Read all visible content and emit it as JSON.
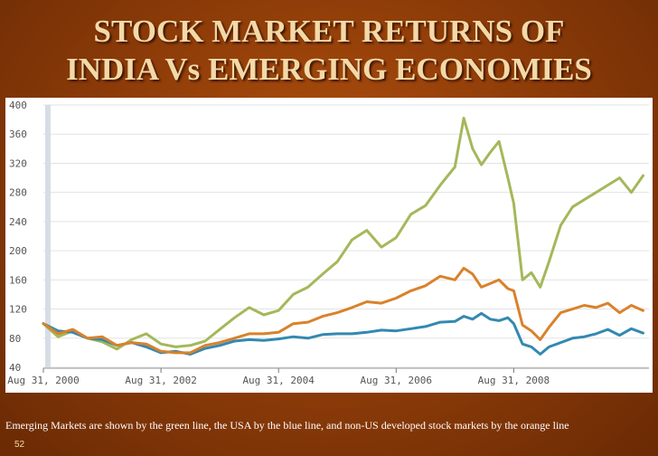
{
  "slide": {
    "title_line1": "STOCK MARKET RETURNS OF",
    "title_line2": "INDIA Vs EMERGING ECONOMIES",
    "caption": "Emerging Markets are shown by the green line, the USA by the blue line, and non-US developed stock markets by the orange line",
    "page_number": "52"
  },
  "chart_data": {
    "type": "line",
    "title": "",
    "xlabel": "",
    "ylabel": "",
    "ylim": [
      40,
      400
    ],
    "xlim": [
      2000.0,
      2010.3
    ],
    "yticks": [
      "400",
      "360",
      "320",
      "280",
      "240",
      "200",
      "160",
      "120",
      "80",
      "40"
    ],
    "xticks": [
      {
        "label": "Aug 31, 2000",
        "x": 2000.0
      },
      {
        "label": "Aug 31, 2002",
        "x": 2002.0
      },
      {
        "label": "Aug 31, 2004",
        "x": 2004.0
      },
      {
        "label": "Aug 31, 2006",
        "x": 2006.0
      },
      {
        "label": "Aug 31, 2008",
        "x": 2008.0
      }
    ],
    "grid": true,
    "legend": "none",
    "series": [
      {
        "name": "Emerging Markets",
        "color": "#a4b85a",
        "x": [
          2000.0,
          2000.25,
          2000.5,
          2000.75,
          2001.0,
          2001.25,
          2001.5,
          2001.75,
          2002.0,
          2002.25,
          2002.5,
          2002.75,
          2003.0,
          2003.25,
          2003.5,
          2003.75,
          2004.0,
          2004.25,
          2004.5,
          2004.75,
          2005.0,
          2005.25,
          2005.5,
          2005.75,
          2006.0,
          2006.25,
          2006.5,
          2006.75,
          2007.0,
          2007.15,
          2007.3,
          2007.45,
          2007.6,
          2007.75,
          2007.9,
          2008.0,
          2008.15,
          2008.3,
          2008.45,
          2008.6,
          2008.8,
          2009.0,
          2009.2,
          2009.4,
          2009.6,
          2009.8,
          2010.0,
          2010.2
        ],
        "values": [
          100,
          82,
          90,
          80,
          75,
          65,
          78,
          86,
          72,
          68,
          70,
          76,
          92,
          108,
          122,
          112,
          118,
          140,
          150,
          168,
          185,
          215,
          228,
          205,
          218,
          250,
          262,
          290,
          315,
          382,
          340,
          318,
          335,
          350,
          300,
          265,
          160,
          170,
          150,
          185,
          235,
          260,
          270,
          280,
          290,
          300,
          280,
          303
        ]
      },
      {
        "name": "USA",
        "color": "#3389b0",
        "x": [
          2000.0,
          2000.25,
          2000.5,
          2000.75,
          2001.0,
          2001.25,
          2001.5,
          2001.75,
          2002.0,
          2002.25,
          2002.5,
          2002.75,
          2003.0,
          2003.25,
          2003.5,
          2003.75,
          2004.0,
          2004.25,
          2004.5,
          2004.75,
          2005.0,
          2005.25,
          2005.5,
          2005.75,
          2006.0,
          2006.25,
          2006.5,
          2006.75,
          2007.0,
          2007.15,
          2007.3,
          2007.45,
          2007.6,
          2007.75,
          2007.9,
          2008.0,
          2008.15,
          2008.3,
          2008.45,
          2008.6,
          2008.8,
          2009.0,
          2009.2,
          2009.4,
          2009.6,
          2009.8,
          2010.0,
          2010.2
        ],
        "values": [
          100,
          90,
          88,
          80,
          78,
          70,
          74,
          68,
          60,
          62,
          58,
          66,
          70,
          76,
          78,
          77,
          79,
          82,
          80,
          85,
          86,
          86,
          88,
          91,
          90,
          93,
          96,
          102,
          103,
          110,
          106,
          114,
          106,
          104,
          108,
          100,
          72,
          68,
          58,
          68,
          74,
          80,
          82,
          86,
          92,
          84,
          93,
          87
        ]
      },
      {
        "name": "Non-US Developed",
        "color": "#d9822b",
        "x": [
          2000.0,
          2000.25,
          2000.5,
          2000.75,
          2001.0,
          2001.25,
          2001.5,
          2001.75,
          2002.0,
          2002.25,
          2002.5,
          2002.75,
          2003.0,
          2003.25,
          2003.5,
          2003.75,
          2004.0,
          2004.25,
          2004.5,
          2004.75,
          2005.0,
          2005.25,
          2005.5,
          2005.75,
          2006.0,
          2006.25,
          2006.5,
          2006.75,
          2007.0,
          2007.15,
          2007.3,
          2007.45,
          2007.6,
          2007.75,
          2007.9,
          2008.0,
          2008.15,
          2008.3,
          2008.45,
          2008.6,
          2008.8,
          2009.0,
          2009.2,
          2009.4,
          2009.6,
          2009.8,
          2010.0,
          2010.2
        ],
        "values": [
          100,
          86,
          92,
          80,
          82,
          70,
          74,
          72,
          62,
          60,
          60,
          70,
          74,
          80,
          86,
          86,
          88,
          100,
          102,
          110,
          115,
          122,
          130,
          128,
          135,
          145,
          152,
          165,
          160,
          176,
          168,
          150,
          155,
          160,
          148,
          145,
          98,
          90,
          78,
          95,
          115,
          120,
          125,
          122,
          128,
          115,
          125,
          118
        ]
      }
    ]
  }
}
